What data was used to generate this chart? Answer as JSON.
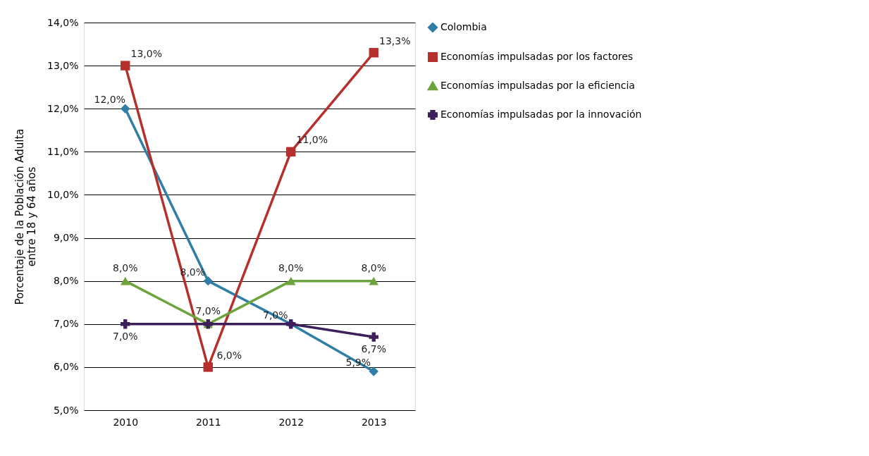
{
  "chart_data": {
    "type": "line",
    "ylabel": "Porcentaje de la Población Adulta entre 18 y 64 años",
    "categories": [
      "2010",
      "2011",
      "2012",
      "2013"
    ],
    "series": [
      {
        "name": "Colombia",
        "color": "#2e7ea6",
        "marker": "diamond",
        "values": [
          12.0,
          8.0,
          7.0,
          5.9
        ],
        "value_labels": [
          "12,0%",
          "8,0%",
          "7,0%",
          "5,9%"
        ]
      },
      {
        "name": "Economías impulsadas por los factores",
        "color": "#b5302c",
        "marker": "square",
        "values": [
          13.0,
          6.0,
          11.0,
          13.3
        ],
        "value_labels": [
          "13,0%",
          "6,0%",
          "11,0%",
          "13,3%"
        ]
      },
      {
        "name": "Economías impulsadas por la eficiencia",
        "color": "#6aa43a",
        "marker": "triangle",
        "values": [
          8.0,
          7.0,
          8.0,
          8.0
        ],
        "value_labels": [
          "8,0%",
          "7,0%",
          "8,0%",
          "8,0%"
        ]
      },
      {
        "name": "Economías impulsadas por la innovación",
        "color": "#3d1f5c",
        "marker": "cross",
        "values": [
          7.0,
          7.0,
          7.0,
          6.7
        ],
        "value_labels": [
          "7,0%",
          null,
          null,
          "6,7%"
        ]
      }
    ],
    "ylim": [
      5.0,
      14.0
    ],
    "yticks": [
      {
        "value": 5,
        "label": "5,0%"
      },
      {
        "value": 6,
        "label": "6,0%"
      },
      {
        "value": 7,
        "label": "7,0%"
      },
      {
        "value": 8,
        "label": "8,0%"
      },
      {
        "value": 9,
        "label": "9,0%"
      },
      {
        "value": 10,
        "label": "10,0%"
      },
      {
        "value": 11,
        "label": "11,0%"
      },
      {
        "value": 12,
        "label": "12,0%"
      },
      {
        "value": 13,
        "label": "13,0%"
      },
      {
        "value": 14,
        "label": "14,0%"
      }
    ],
    "grid": "y",
    "legend": "right",
    "line_style": "solid"
  }
}
